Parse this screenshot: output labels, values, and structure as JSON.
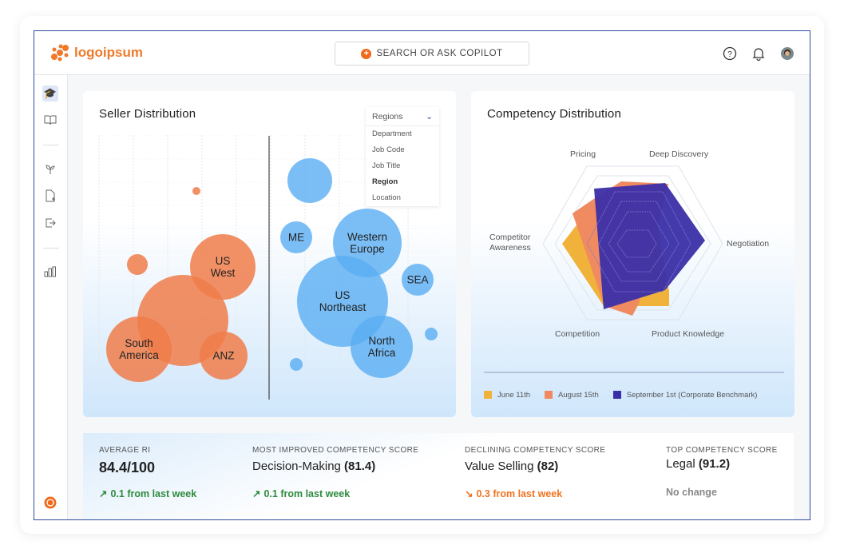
{
  "header": {
    "logo_text": "logoipsum",
    "search_placeholder": "SEARCH OR ASK COPILOT",
    "icons": [
      "help-icon",
      "bell-icon",
      "avatar"
    ]
  },
  "sidebar": {
    "items": [
      "graduation-cap-icon",
      "book-icon",
      "sprout-icon",
      "file-add-icon",
      "export-icon",
      "bar-chart-icon"
    ],
    "active": "graduation-cap-icon"
  },
  "seller_distribution": {
    "title": "Seller Distribution",
    "dropdown": {
      "selected": "Regions",
      "options": [
        "Department",
        "Job Code",
        "Job Title",
        "Region",
        "Location"
      ],
      "highlighted": "Region"
    },
    "labels": {
      "us_west": "US\nWest",
      "south_america": "South\nAmerica",
      "anz": "ANZ",
      "me": "ME",
      "western_europe": "Western\nEurope",
      "us_northeast": "US\nNortheast",
      "sea": "SEA",
      "north_africa": "North\nAfrica"
    },
    "colors": {
      "orange": "#f07d4a",
      "blue": "#5aaef2"
    }
  },
  "competency_distribution": {
    "title": "Competency Distribution",
    "axes": [
      "Pricing",
      "Deep Discovery",
      "Negotiation",
      "Product Knowledge",
      "Competition",
      "Competitor\nAwareness"
    ],
    "legend": [
      {
        "label": "June 11th",
        "color": "#f0b23a"
      },
      {
        "label": "August 15th",
        "color": "#f08a60"
      },
      {
        "label": "September 1st (Corporate Benchmark)",
        "color": "#3a2fa8"
      }
    ]
  },
  "stats": [
    {
      "label": "AVERAGE RI",
      "value": "84.4/100",
      "name": "",
      "change": "0.1 from last week",
      "trend": "up"
    },
    {
      "label": "MOST IMPROVED COMPETENCY SCORE",
      "name": "Decision-Making",
      "value": "(81.4)",
      "change": "0.1 from last week",
      "trend": "up"
    },
    {
      "label": "DECLINING COMPETENCY SCORE",
      "name": "Value Selling",
      "value": "(82)",
      "change": "0.3 from last week",
      "trend": "down"
    },
    {
      "label": "TOP COMPETENCY SCORE",
      "name": "Legal",
      "value": "(91.2)",
      "change": "No change",
      "trend": "none"
    }
  ],
  "trend_colors": {
    "up": "#2e8b3e",
    "down": "#f0731e",
    "none": "#888888"
  }
}
